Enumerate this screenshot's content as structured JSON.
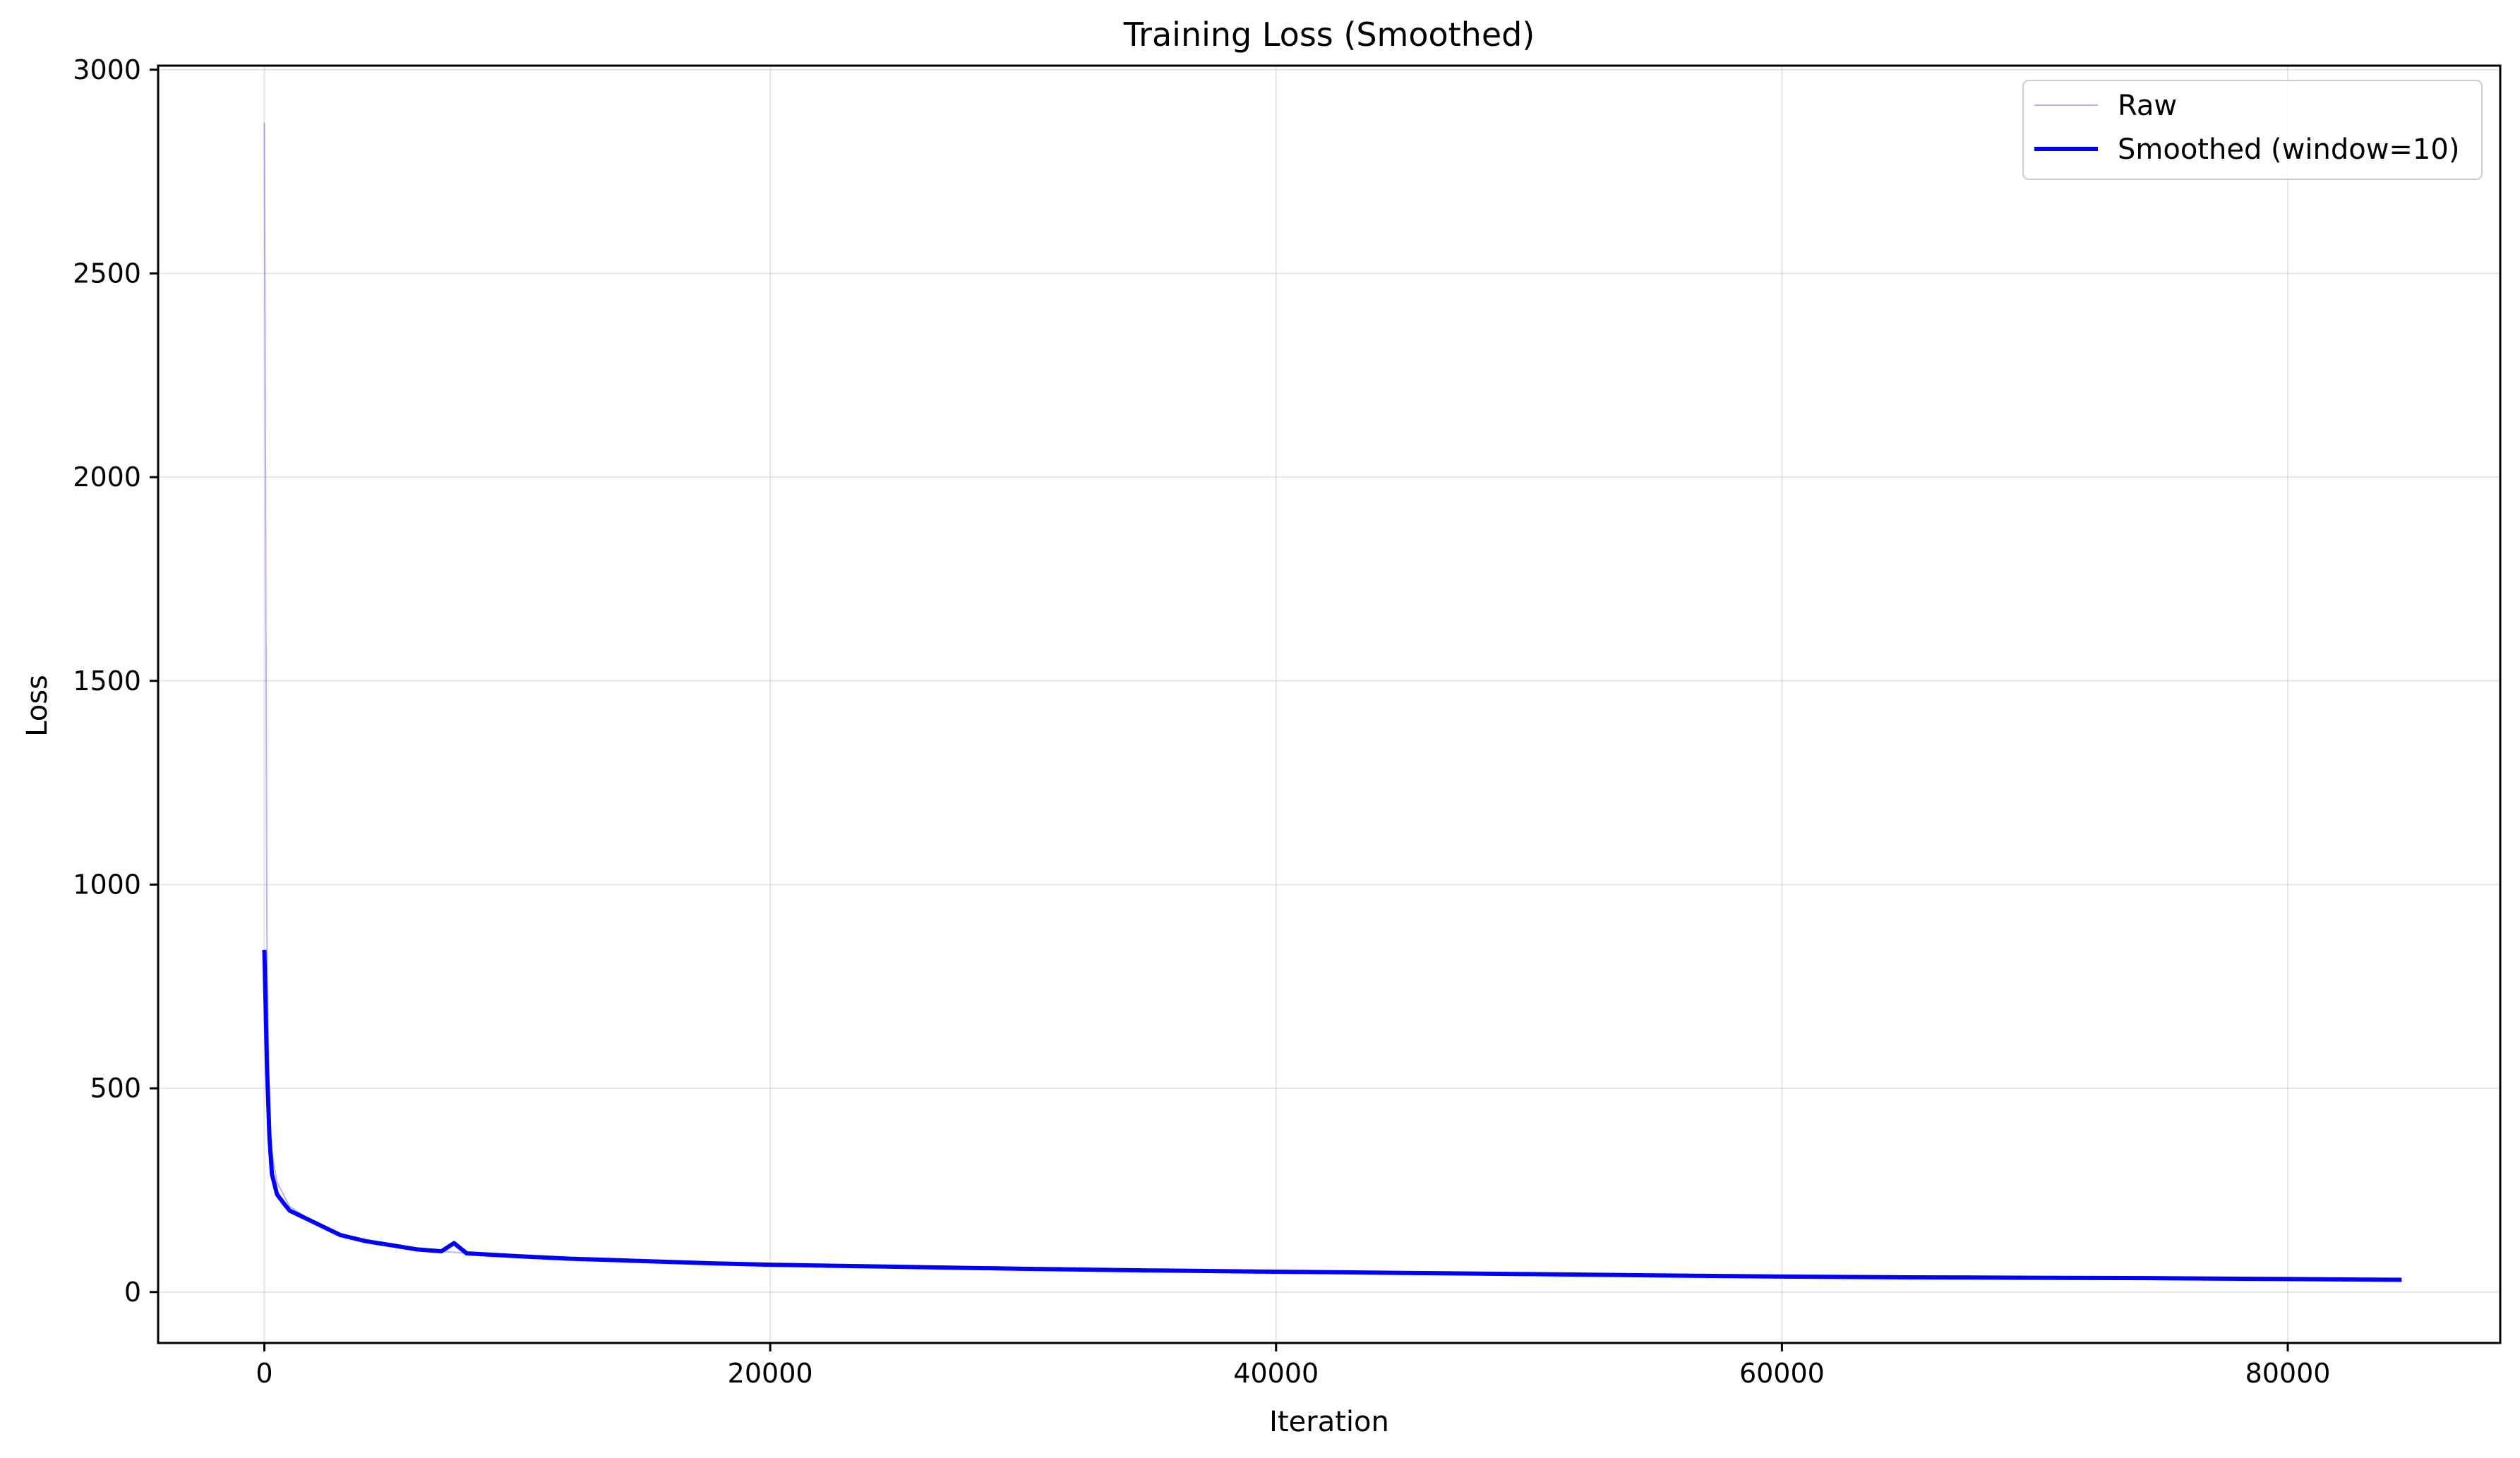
{
  "chart_data": {
    "type": "line",
    "title": "Training Loss (Smoothed)",
    "xlabel": "Iteration",
    "ylabel": "Loss",
    "xlim": [
      -4200,
      88400
    ],
    "ylim": [
      -125,
      3010
    ],
    "xticks": [
      0,
      20000,
      40000,
      60000,
      80000
    ],
    "yticks": [
      0,
      500,
      1000,
      1500,
      2000,
      2500,
      3000
    ],
    "grid": true,
    "legend_position": "top-right",
    "series": [
      {
        "name": "Raw",
        "color": "#0000ff",
        "style": "thin, transparent",
        "x": [
          0,
          100,
          200,
          500,
          1000,
          2000,
          3000,
          4000,
          5000,
          6000,
          7000,
          8000,
          10000,
          12000,
          14000,
          16000,
          18000,
          20000,
          25000,
          30000,
          35000,
          40000,
          45000,
          50000,
          55000,
          60000,
          65000,
          70000,
          75000,
          80000,
          84500
        ],
        "y": [
          2870,
          900,
          380,
          270,
          210,
          170,
          140,
          125,
          115,
          105,
          100,
          95,
          90,
          85,
          80,
          76,
          72,
          68,
          62,
          57,
          53,
          50,
          47,
          44,
          41,
          38,
          36,
          35,
          34,
          32,
          30
        ]
      },
      {
        "name": "Smoothed (window=10)",
        "color": "#0000ff",
        "style": "thick",
        "x": [
          0,
          100,
          200,
          300,
          500,
          800,
          1000,
          1500,
          2000,
          3000,
          4000,
          5000,
          6000,
          7000,
          7500,
          8000,
          10000,
          12000,
          14000,
          16000,
          18000,
          20000,
          25000,
          30000,
          35000,
          40000,
          45000,
          50000,
          55000,
          60000,
          65000,
          70000,
          75000,
          80000,
          84500
        ],
        "y": [
          840,
          560,
          380,
          290,
          240,
          215,
          200,
          185,
          170,
          140,
          125,
          115,
          105,
          100,
          120,
          95,
          88,
          82,
          78,
          74,
          70,
          67,
          62,
          57,
          53,
          50,
          47,
          44,
          41,
          38,
          36,
          35,
          34,
          32,
          30
        ]
      }
    ]
  }
}
